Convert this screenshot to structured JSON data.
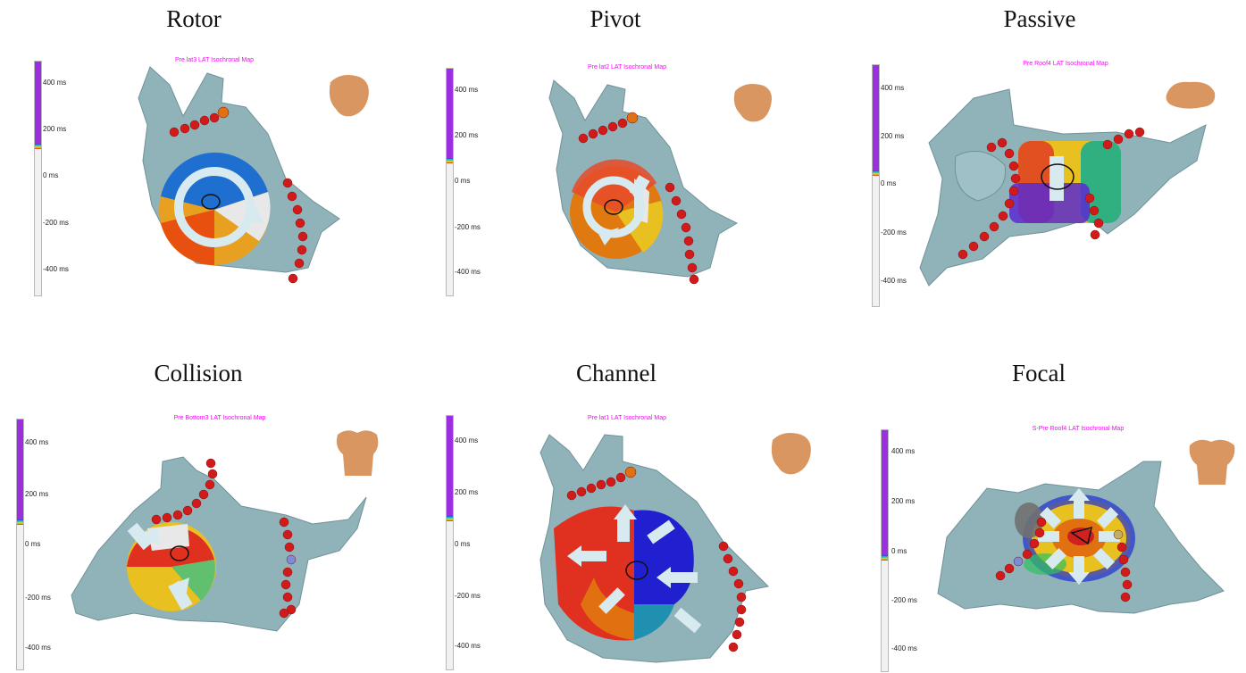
{
  "panels": [
    {
      "title": "Rotor",
      "map_title": "Pre lat3 LAT Isochronal Map",
      "ticks": [
        "400 ms",
        "200 ms",
        "0 ms",
        "-200 ms",
        "-400 ms"
      ]
    },
    {
      "title": "Pivot",
      "map_title": "Pre lat2 LAT Isochronal Map",
      "ticks": [
        "400 ms",
        "200 ms",
        "0 ms",
        "-200 ms",
        "-400 ms"
      ]
    },
    {
      "title": "Passive",
      "map_title": "Pre Roof4 LAT Isochronal Map",
      "ticks": [
        "400 ms",
        "200 ms",
        "0 ms",
        "-200 ms",
        "-400 ms"
      ]
    },
    {
      "title": "Collision",
      "map_title": "Pre Bottom3 LAT Isochronal Map",
      "ticks": [
        "400 ms",
        "200 ms",
        "0 ms",
        "-200 ms",
        "-400 ms"
      ]
    },
    {
      "title": "Channel",
      "map_title": "Pre lat1 LAT Isochronal Map",
      "ticks": [
        "400 ms",
        "200 ms",
        "0 ms",
        "-200 ms",
        "-400 ms"
      ]
    },
    {
      "title": "Focal",
      "map_title": "S-Pre Roof4 LAT Isochronal Map",
      "ticks": [
        "400 ms",
        "200 ms",
        "0 ms",
        "-200 ms",
        "-400 ms"
      ]
    }
  ],
  "colors": {
    "chamber": "#8fb3b9",
    "catheter": "#d11a1a",
    "scale": "#9b2fe0",
    "arrow": "#d7eaf0",
    "title": "#ff00ff"
  }
}
